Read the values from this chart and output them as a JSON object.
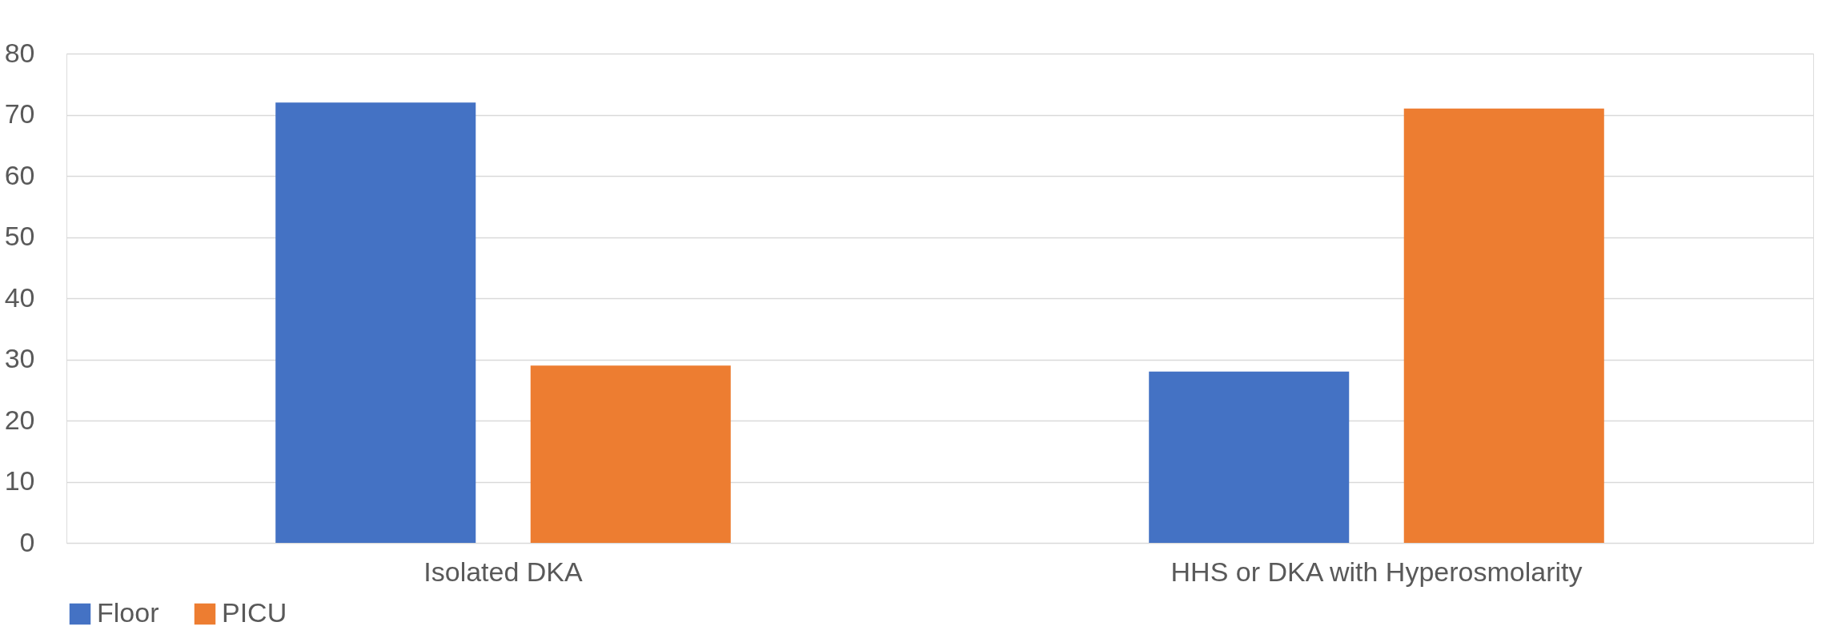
{
  "chart_data": {
    "type": "bar",
    "categories": [
      "Isolated DKA",
      "HHS or DKA with Hyperosmolarity"
    ],
    "series": [
      {
        "name": "Floor",
        "color": "#4472c4",
        "values": [
          72,
          28
        ]
      },
      {
        "name": "PICU",
        "color": "#ed7d31",
        "values": [
          29,
          71
        ]
      }
    ],
    "ylim": [
      0,
      80
    ],
    "yticks": [
      0,
      10,
      20,
      30,
      40,
      50,
      60,
      70,
      80
    ],
    "grid": "y",
    "legend": "bottom"
  }
}
